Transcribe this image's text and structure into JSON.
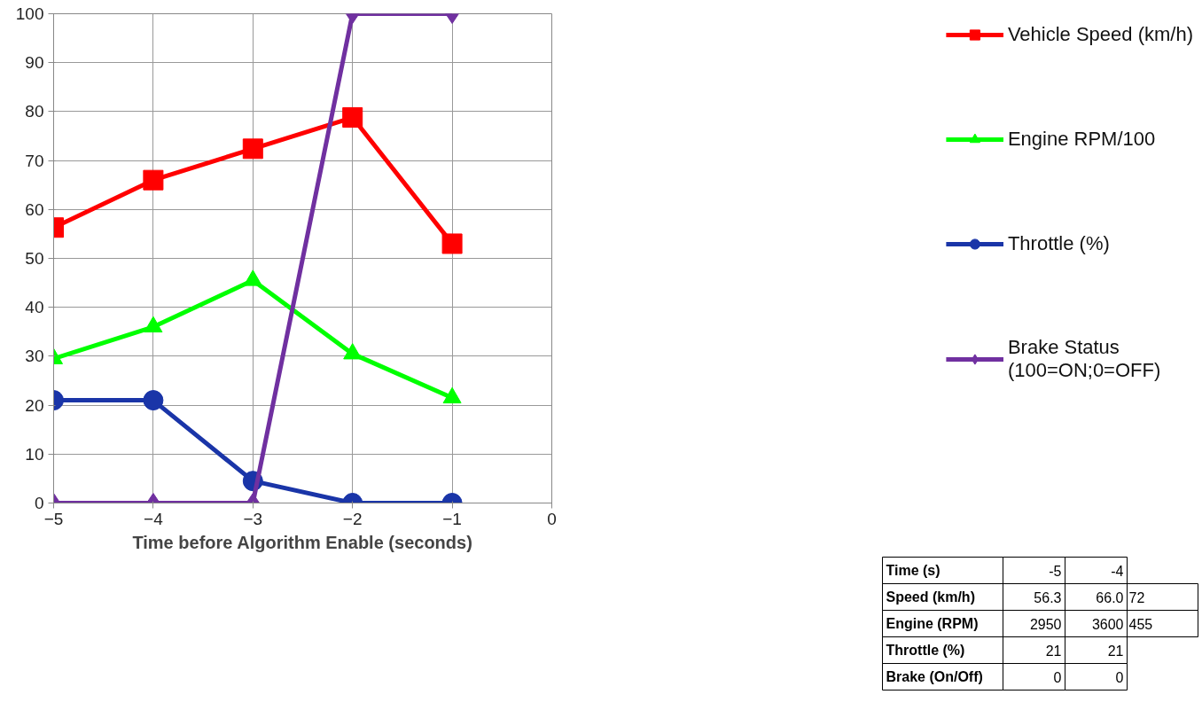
{
  "chart_data": {
    "type": "line",
    "xlabel": "Time before Algorithm Enable (seconds)",
    "x": [
      -5,
      -4,
      -3,
      -2,
      -1
    ],
    "series": [
      {
        "name": "Vehicle Speed (km/h)",
        "color": "#ff0000",
        "marker": "square",
        "values": [
          56.3,
          66.0,
          72.4,
          78.8,
          53.0
        ]
      },
      {
        "name": "Engine RPM/100",
        "color": "#00ff00",
        "marker": "triangle",
        "values": [
          29.5,
          36.0,
          45.5,
          30.5,
          21.5
        ]
      },
      {
        "name": "Throttle (%)",
        "color": "#1a35a8",
        "marker": "circle",
        "values": [
          21,
          21,
          4.5,
          0,
          0
        ]
      },
      {
        "name": "Brake Status (100=ON;0=OFF)",
        "color": "#7030a0",
        "marker": "diamond",
        "values": [
          0,
          0,
          0,
          100,
          100
        ]
      }
    ],
    "xlim": [
      -5,
      0
    ],
    "xticks": [
      -5,
      -4,
      -3,
      -2,
      -1,
      0
    ],
    "ylim": [
      0,
      100
    ],
    "yticks": [
      0,
      10,
      20,
      30,
      40,
      50,
      60,
      70,
      80,
      90,
      100
    ],
    "grid": true,
    "legend": "right",
    "line_style": "solid",
    "annotations": [
      "Time (s)",
      "-5",
      "-4",
      "Speed (km/h)",
      "56.3",
      "66.0",
      "72",
      "Engine (RPM)",
      "2950",
      "3600",
      "455",
      "Throttle (%)",
      "21",
      "21",
      "Brake (On/Off)",
      "0",
      "0"
    ]
  }
}
